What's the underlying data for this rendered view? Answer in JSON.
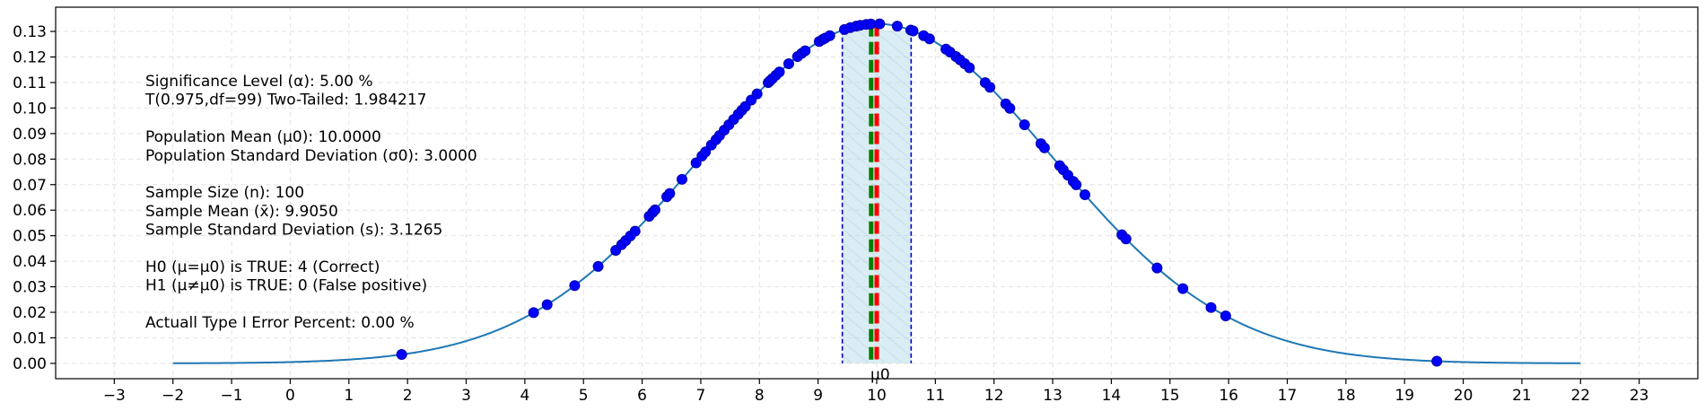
{
  "chart_data": {
    "type": "line",
    "title": "",
    "xlabel": "",
    "ylabel": "",
    "xlim": [
      -4,
      24
    ],
    "ylim": [
      -0.006,
      0.1395
    ],
    "x_ticks": [
      -3,
      -2,
      -1,
      0,
      1,
      2,
      3,
      4,
      5,
      6,
      7,
      8,
      9,
      10,
      11,
      12,
      13,
      14,
      15,
      16,
      17,
      18,
      19,
      20,
      21,
      22,
      23
    ],
    "y_ticks": [
      0.0,
      0.01,
      0.02,
      0.03,
      0.04,
      0.05,
      0.06,
      0.07,
      0.08,
      0.09,
      0.1,
      0.11,
      0.12,
      0.13
    ],
    "grid": true,
    "curve": {
      "distribution": "normal",
      "mean": 10.0,
      "sd": 3.0,
      "x_range": [
        -2,
        22
      ],
      "color": "#1f77b4"
    },
    "acceptance_region": {
      "x_low": 9.4133,
      "x_high": 10.5867,
      "fill_color": "#add8e6",
      "edge_color": "#0000cd"
    },
    "sample_mean_line": {
      "x": 9.905,
      "color": "#008000"
    },
    "population_mean_line": {
      "x": 10.0,
      "color": "#ff0000"
    },
    "mu0_label": {
      "x": 10.0,
      "text": "μ0"
    },
    "sample_points": {
      "color": "#0000ff",
      "x": [
        1.9,
        4.15,
        4.38,
        4.85,
        5.25,
        5.55,
        5.65,
        5.72,
        5.8,
        5.88,
        6.12,
        6.18,
        6.22,
        6.42,
        6.47,
        6.68,
        6.92,
        7.02,
        7.08,
        7.18,
        7.26,
        7.32,
        7.4,
        7.48,
        7.56,
        7.64,
        7.7,
        7.76,
        7.86,
        7.96,
        8.15,
        8.18,
        8.22,
        8.28,
        8.34,
        8.5,
        8.65,
        8.72,
        8.78,
        9.02,
        9.08,
        9.12,
        9.2,
        9.45,
        9.55,
        9.65,
        9.72,
        9.82,
        9.9,
        10.05,
        10.35,
        10.58,
        10.62,
        10.8,
        10.9,
        11.18,
        11.25,
        11.35,
        11.42,
        11.5,
        11.58,
        11.85,
        11.93,
        12.2,
        12.27,
        12.52,
        12.8,
        12.86,
        13.12,
        13.18,
        13.26,
        13.35,
        13.4,
        13.55,
        14.18,
        14.25,
        14.78,
        15.22,
        15.7,
        15.95,
        19.55
      ]
    },
    "info_lines": [
      "Significance Level (α): 5.00 %",
      "T(0.975,df=99) Two-Tailed: 1.984217",
      "",
      "Population Mean (μ0): 10.0000",
      "Population Standard Deviation (σ0): 3.0000",
      "",
      "Sample Size (n): 100",
      "Sample Mean (x̄): 9.9050",
      "Sample Standard Deviation (s): 3.1265",
      "",
      "H0 (μ=μ0) is TRUE: 4 (Correct)",
      "H1 (μ≠μ0) is TRUE: 0 (False positive)",
      "",
      "Actuall Type I Error Percent: 0.00 %"
    ]
  }
}
